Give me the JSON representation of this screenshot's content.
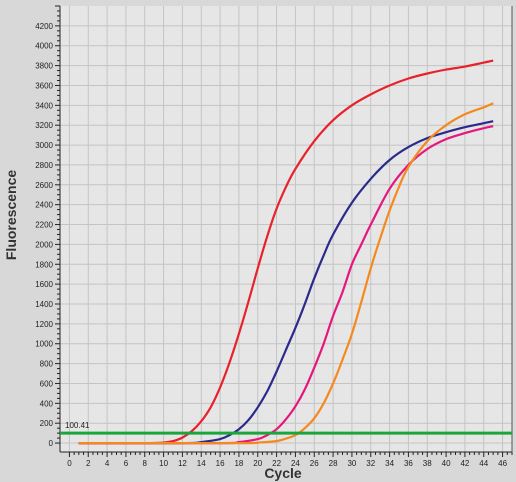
{
  "chart_data": {
    "type": "line",
    "xlabel": "Cycle",
    "ylabel": "Fluorescence",
    "xlim": [
      -1,
      47
    ],
    "ylim": [
      -90,
      4400
    ],
    "xticks": [
      0,
      2,
      4,
      6,
      8,
      10,
      12,
      14,
      16,
      18,
      20,
      22,
      24,
      26,
      28,
      30,
      32,
      34,
      36,
      38,
      40,
      42,
      44,
      46
    ],
    "yticks": [
      0,
      200,
      400,
      600,
      800,
      1000,
      1200,
      1400,
      1600,
      1800,
      2000,
      2200,
      2400,
      2600,
      2800,
      3000,
      3200,
      3400,
      3600,
      3800,
      4000,
      4200
    ],
    "grid": true,
    "legend": "none",
    "threshold": {
      "label": "100.41",
      "value": 100.41,
      "color": "#1aa63a"
    },
    "series": [
      {
        "color": "#e8222a",
        "x": [
          1,
          8,
          10,
          11,
          12,
          13,
          14,
          15,
          16,
          17,
          18,
          19,
          20,
          21,
          22,
          23,
          24,
          26,
          28,
          30,
          32,
          34,
          36,
          38,
          40,
          42,
          44,
          45
        ],
        "y": [
          0,
          0,
          5,
          20,
          55,
          120,
          220,
          360,
          560,
          810,
          1100,
          1420,
          1760,
          2080,
          2360,
          2580,
          2760,
          3040,
          3250,
          3400,
          3510,
          3600,
          3670,
          3720,
          3760,
          3790,
          3830,
          3850
        ]
      },
      {
        "color": "#2b2a8c",
        "x": [
          1,
          12,
          14,
          16,
          17,
          18,
          19,
          20,
          21,
          22,
          23,
          24,
          25,
          26,
          27,
          28,
          30,
          32,
          34,
          36,
          38,
          40,
          42,
          44,
          45
        ],
        "y": [
          0,
          0,
          10,
          40,
          80,
          140,
          230,
          360,
          520,
          720,
          940,
          1160,
          1400,
          1660,
          1890,
          2100,
          2420,
          2660,
          2850,
          2980,
          3070,
          3130,
          3180,
          3220,
          3240
        ]
      },
      {
        "color": "#e6177c",
        "x": [
          1,
          16,
          18,
          20,
          21,
          22,
          23,
          24,
          25,
          26,
          27,
          28,
          29,
          30,
          31,
          32,
          34,
          36,
          38,
          40,
          42,
          44,
          45
        ],
        "y": [
          0,
          0,
          10,
          40,
          80,
          140,
          240,
          370,
          540,
          760,
          1000,
          1280,
          1520,
          1800,
          2000,
          2200,
          2560,
          2800,
          2960,
          3060,
          3120,
          3170,
          3190
        ]
      },
      {
        "color": "#f5891f",
        "x": [
          1,
          18,
          20,
          22,
          23,
          24,
          25,
          26,
          27,
          28,
          29,
          30,
          31,
          32,
          33,
          34,
          35,
          36,
          38,
          40,
          42,
          44,
          45
        ],
        "y": [
          0,
          0,
          5,
          20,
          45,
          80,
          150,
          250,
          400,
          600,
          840,
          1100,
          1420,
          1760,
          2060,
          2340,
          2580,
          2780,
          3040,
          3200,
          3310,
          3380,
          3420
        ]
      }
    ]
  }
}
